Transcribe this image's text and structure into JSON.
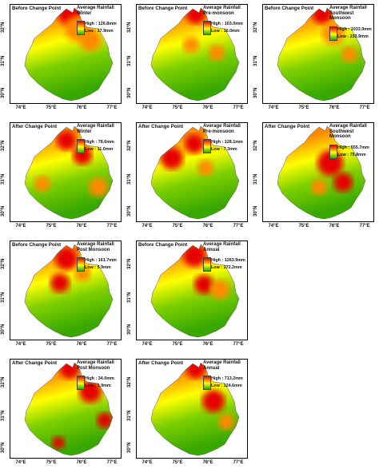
{
  "axes": {
    "x_ticks": [
      "74°E",
      "75°E",
      "76°E",
      "77°E"
    ],
    "y_ticks": [
      "32°N",
      "31°N",
      "30°N"
    ]
  },
  "colors": {
    "high": "#e60000",
    "mid_high": "#ff8a00",
    "mid": "#ffff00",
    "mid_low": "#7fd000",
    "low": "#38a800"
  },
  "panels": [
    {
      "period": "Before Change Point",
      "legend_title": "Average Rainfall",
      "season": "Winter",
      "high": "High : 126.8mm",
      "low": "Low : 17.9mm"
    },
    {
      "period": "Before Change Point",
      "legend_title": "Average Rainfall",
      "season": "Pre-monsoon",
      "high": "High : 103.0mm",
      "low": "Low : 16.0mm"
    },
    {
      "period": "Before Change Point",
      "legend_title": "Average Rainfall",
      "season": "Southwest Monsoon",
      "high": "High : 1033.9mm",
      "low": "Low : 233.9mm"
    },
    {
      "period": "After Change Point",
      "legend_title": "Average Rainfall",
      "season": "Winter",
      "high": "High : 78.6mm",
      "low": "Low : 11.0mm"
    },
    {
      "period": "After Change Point",
      "legend_title": "Average Rainfall",
      "season": "Pre-monsoon",
      "high": "High : 128.1mm",
      "low": "Low : 7.3mm"
    },
    {
      "period": "After Change Point",
      "legend_title": "Average Rainfall",
      "season": "Southwest Monsoon",
      "high": "High : 555.7mm",
      "low": "Low : 75.8mm"
    },
    {
      "period": "Before Change Point",
      "legend_title": "Average Rainfall",
      "season": "Post Monsoon",
      "high": "High : 161.7mm",
      "low": "Low : 5.9mm"
    },
    {
      "period": "Before Change Point",
      "legend_title": "Average Rainfall",
      "season": "Annual",
      "high": "High : 1263.9mm",
      "low": "Low : 272.2mm"
    },
    {
      "period": "After Change Point",
      "legend_title": "Average Rainfall",
      "season": "Post Monsoon",
      "high": "High : 34.0mm",
      "low": "Low : 1.9mm"
    },
    {
      "period": "After Change Point",
      "legend_title": "Average Rainfall",
      "season": "Annual",
      "high": "High : 713.2mm",
      "low": "Low : 124.6mm"
    }
  ]
}
